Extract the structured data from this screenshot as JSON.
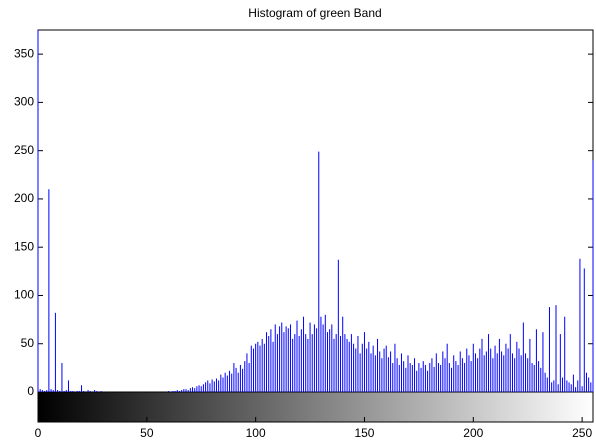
{
  "chart_data": {
    "type": "stem",
    "title": "Histogram of green Band",
    "x": [
      0,
      1,
      2,
      3,
      4,
      5,
      6,
      7,
      8,
      9,
      10,
      11,
      12,
      13,
      14,
      15,
      16,
      17,
      18,
      19,
      20,
      21,
      22,
      23,
      24,
      25,
      26,
      27,
      28,
      29,
      30,
      31,
      32,
      33,
      34,
      35,
      36,
      37,
      38,
      39,
      40,
      41,
      42,
      43,
      44,
      45,
      46,
      47,
      48,
      49,
      50,
      51,
      52,
      53,
      54,
      55,
      56,
      57,
      58,
      59,
      60,
      61,
      62,
      63,
      64,
      65,
      66,
      67,
      68,
      69,
      70,
      71,
      72,
      73,
      74,
      75,
      76,
      77,
      78,
      79,
      80,
      81,
      82,
      83,
      84,
      85,
      86,
      87,
      88,
      89,
      90,
      91,
      92,
      93,
      94,
      95,
      96,
      97,
      98,
      99,
      100,
      101,
      102,
      103,
      104,
      105,
      106,
      107,
      108,
      109,
      110,
      111,
      112,
      113,
      114,
      115,
      116,
      117,
      118,
      119,
      120,
      121,
      122,
      123,
      124,
      125,
      126,
      127,
      128,
      129,
      130,
      131,
      132,
      133,
      134,
      135,
      136,
      137,
      138,
      139,
      140,
      141,
      142,
      143,
      144,
      145,
      146,
      147,
      148,
      149,
      150,
      151,
      152,
      153,
      154,
      155,
      156,
      157,
      158,
      159,
      160,
      161,
      162,
      163,
      164,
      165,
      166,
      167,
      168,
      169,
      170,
      171,
      172,
      173,
      174,
      175,
      176,
      177,
      178,
      179,
      180,
      181,
      182,
      183,
      184,
      185,
      186,
      187,
      188,
      189,
      190,
      191,
      192,
      193,
      194,
      195,
      196,
      197,
      198,
      199,
      200,
      201,
      202,
      203,
      204,
      205,
      206,
      207,
      208,
      209,
      210,
      211,
      212,
      213,
      214,
      215,
      216,
      217,
      218,
      219,
      220,
      221,
      222,
      223,
      224,
      225,
      226,
      227,
      228,
      229,
      230,
      231,
      232,
      233,
      234,
      235,
      236,
      237,
      238,
      239,
      240,
      241,
      242,
      243,
      244,
      245,
      246,
      247,
      248,
      249,
      250,
      251,
      252,
      253,
      254,
      255
    ],
    "values": [
      375,
      3,
      2,
      1,
      2,
      210,
      3,
      2,
      82,
      2,
      1,
      30,
      1,
      2,
      12,
      1,
      1,
      0,
      1,
      1,
      7,
      1,
      0,
      2,
      1,
      0,
      2,
      1,
      0,
      1,
      0,
      0,
      0,
      0,
      0,
      0,
      0,
      0,
      0,
      0,
      0,
      0,
      0,
      0,
      0,
      0,
      0,
      0,
      0,
      0,
      0,
      0,
      0,
      0,
      0,
      0,
      0,
      0,
      0,
      0,
      1,
      0,
      1,
      1,
      2,
      1,
      2,
      3,
      3,
      2,
      4,
      5,
      4,
      6,
      7,
      6,
      8,
      10,
      12,
      9,
      13,
      11,
      14,
      12,
      18,
      15,
      20,
      17,
      22,
      19,
      30,
      25,
      20,
      28,
      24,
      32,
      40,
      30,
      48,
      45,
      50,
      52,
      48,
      55,
      50,
      62,
      58,
      65,
      52,
      70,
      60,
      68,
      72,
      62,
      68,
      66,
      70,
      55,
      60,
      74,
      58,
      65,
      78,
      60,
      55,
      72,
      60,
      70,
      66,
      249,
      78,
      70,
      80,
      62,
      65,
      70,
      55,
      60,
      137,
      58,
      78,
      60,
      55,
      52,
      60,
      50,
      45,
      58,
      40,
      50,
      62,
      45,
      52,
      40,
      48,
      38,
      55,
      42,
      35,
      45,
      48,
      36,
      42,
      30,
      50,
      35,
      28,
      40,
      32,
      25,
      38,
      30,
      28,
      35,
      22,
      30,
      25,
      32,
      28,
      22,
      30,
      35,
      26,
      40,
      30,
      28,
      42,
      35,
      50,
      30,
      25,
      38,
      32,
      28,
      42,
      35,
      30,
      45,
      38,
      32,
      50,
      40,
      35,
      45,
      55,
      38,
      42,
      60,
      45,
      35,
      48,
      40,
      55,
      42,
      38,
      50,
      45,
      60,
      40,
      35,
      52,
      45,
      38,
      72,
      40,
      35,
      55,
      30,
      28,
      65,
      32,
      25,
      62,
      20,
      15,
      88,
      10,
      12,
      90,
      8,
      60,
      15,
      78,
      12,
      10,
      8,
      18,
      5,
      12,
      138,
      6,
      128,
      20,
      15,
      10,
      240
    ],
    "color": "#0000ff",
    "xlim": [
      0,
      255
    ],
    "xticks": [
      0,
      50,
      100,
      150,
      200,
      250
    ],
    "ylim": [
      0,
      375
    ],
    "yticks": [
      0,
      50,
      100,
      150,
      200,
      250,
      300,
      350
    ]
  }
}
